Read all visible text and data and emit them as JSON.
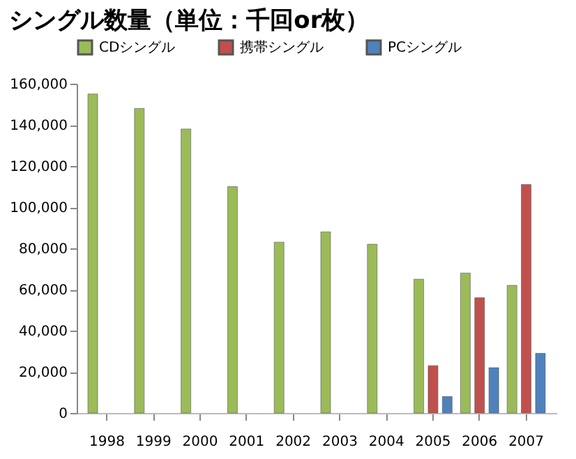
{
  "chart_data": {
    "type": "bar",
    "title": "シングル数量（単位：千回or枚）",
    "categories": [
      "1998",
      "1999",
      "2000",
      "2001",
      "2002",
      "2003",
      "2004",
      "2005",
      "2006",
      "2007"
    ],
    "series": [
      {
        "name": "CDシングル",
        "color": "#9bbb59",
        "values": [
          155000,
          148000,
          138000,
          110000,
          83000,
          88000,
          82000,
          65000,
          68000,
          62000
        ]
      },
      {
        "name": "携帯シングル",
        "color": "#c0504d",
        "values": [
          null,
          null,
          null,
          null,
          null,
          null,
          null,
          23000,
          56000,
          111000
        ]
      },
      {
        "name": "PCシングル",
        "color": "#4f81bd",
        "values": [
          null,
          null,
          null,
          null,
          null,
          null,
          null,
          8000,
          22000,
          29000
        ]
      }
    ],
    "ylim": [
      0,
      160000
    ],
    "yticks": [
      0,
      {
        "value": 20000,
        "label": "20,000"
      },
      {
        "value": 40000,
        "label": "40,000"
      },
      {
        "value": 60000,
        "label": "60,000"
      },
      {
        "value": 80000,
        "label": "80,000"
      },
      {
        "value": 100000,
        "label": "100,000"
      },
      {
        "value": 120000,
        "label": "120,000"
      },
      {
        "value": 140000,
        "label": "140,000"
      },
      {
        "value": 160000,
        "label": "160,000"
      }
    ],
    "grid": false,
    "legend": "top"
  }
}
